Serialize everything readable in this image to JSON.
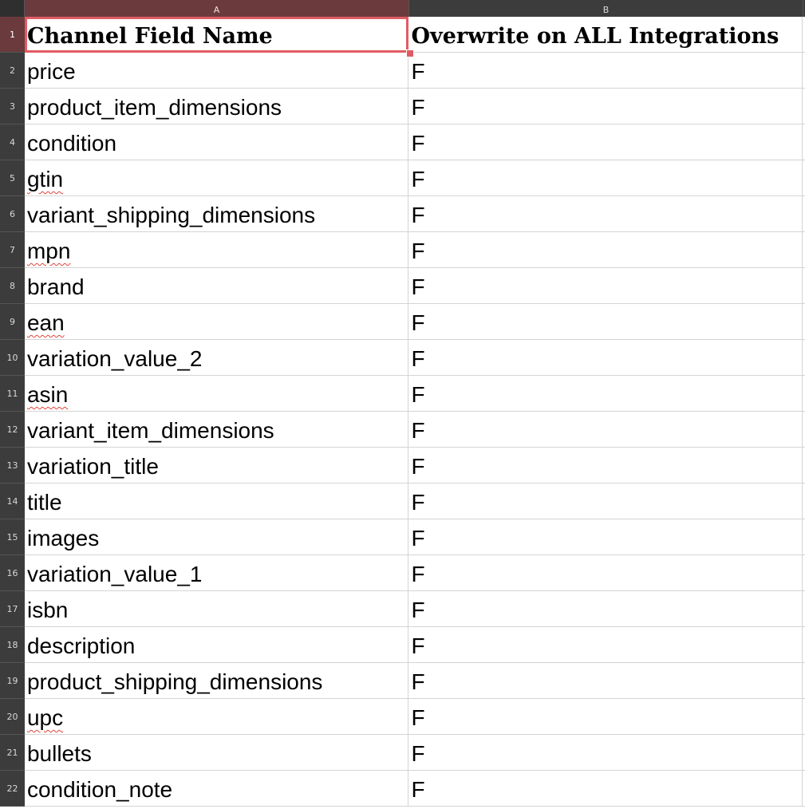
{
  "columns": [
    "A",
    "B"
  ],
  "header": {
    "row_num": "1",
    "col_a": "Channel Field Name",
    "col_b": "Overwrite on ALL Integrations"
  },
  "rows": [
    {
      "num": "2",
      "a": "price",
      "b": "F",
      "spell": false
    },
    {
      "num": "3",
      "a": "product_item_dimensions",
      "b": "F",
      "spell": false
    },
    {
      "num": "4",
      "a": "condition",
      "b": "F",
      "spell": false
    },
    {
      "num": "5",
      "a": "gtin",
      "b": "F",
      "spell": true
    },
    {
      "num": "6",
      "a": "variant_shipping_dimensions",
      "b": "F",
      "spell": false
    },
    {
      "num": "7",
      "a": "mpn",
      "b": "F",
      "spell": true
    },
    {
      "num": "8",
      "a": "brand",
      "b": "F",
      "spell": false
    },
    {
      "num": "9",
      "a": "ean",
      "b": "F",
      "spell": true
    },
    {
      "num": "10",
      "a": "variation_value_2",
      "b": "F",
      "spell": false
    },
    {
      "num": "11",
      "a": "asin",
      "b": "F",
      "spell": true
    },
    {
      "num": "12",
      "a": "variant_item_dimensions",
      "b": "F",
      "spell": false
    },
    {
      "num": "13",
      "a": "variation_title",
      "b": "F",
      "spell": false
    },
    {
      "num": "14",
      "a": "title",
      "b": "F",
      "spell": false
    },
    {
      "num": "15",
      "a": "images",
      "b": "F",
      "spell": false
    },
    {
      "num": "16",
      "a": "variation_value_1",
      "b": "F",
      "spell": false
    },
    {
      "num": "17",
      "a": "isbn",
      "b": "F",
      "spell": false
    },
    {
      "num": "18",
      "a": "description",
      "b": "F",
      "spell": false
    },
    {
      "num": "19",
      "a": "product_shipping_dimensions",
      "b": "F",
      "spell": false
    },
    {
      "num": "20",
      "a": "upc",
      "b": "F",
      "spell": true
    },
    {
      "num": "21",
      "a": "bullets",
      "b": "F",
      "spell": false
    },
    {
      "num": "22",
      "a": "condition_note",
      "b": "F",
      "spell": false
    }
  ],
  "colors": {
    "selection": "#e05c63",
    "header_bg": "#3c3c3c",
    "active_header_bg": "#6b3a3c"
  }
}
